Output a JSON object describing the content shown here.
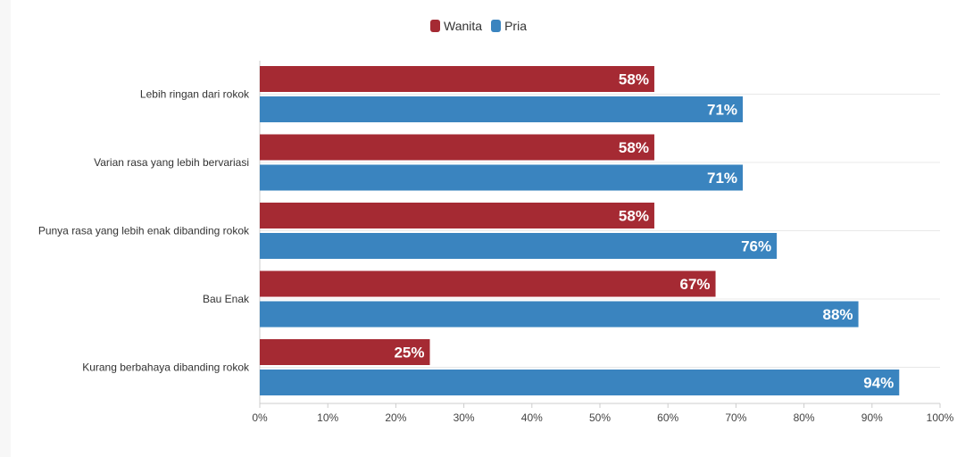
{
  "chart_data": {
    "type": "bar",
    "orientation": "horizontal",
    "categories": [
      "Lebih ringan dari rokok",
      "Varian rasa yang lebih bervariasi",
      "Punya rasa yang lebih enak dibanding rokok",
      "Bau Enak",
      "Kurang berbahaya dibanding rokok"
    ],
    "series": [
      {
        "name": "Wanita",
        "color": "#a52a33",
        "values": [
          58,
          58,
          58,
          67,
          25
        ]
      },
      {
        "name": "Pria",
        "color": "#3a84bf",
        "values": [
          71,
          71,
          76,
          88,
          94
        ]
      }
    ],
    "value_suffix": "%",
    "xlim": [
      0,
      100
    ],
    "x_ticks": [
      "0%",
      "10%",
      "20%",
      "30%",
      "40%",
      "50%",
      "60%",
      "70%",
      "80%",
      "90%",
      "100%"
    ],
    "grid": true,
    "legend_position": "top-center"
  }
}
